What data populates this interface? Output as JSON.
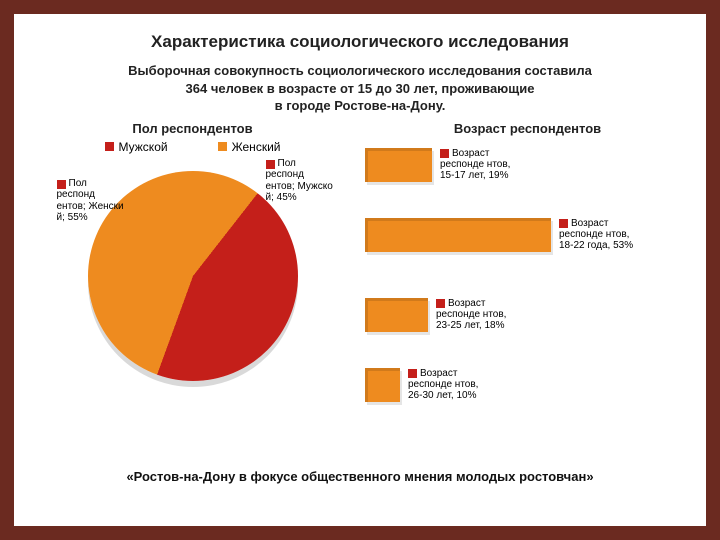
{
  "title": "Характеристика социологического исследования",
  "subtitle_l1": "Выборочная совокупность социологического исследования составила",
  "subtitle_l2": "364 человек в возрасте от 15 до 30 лет, проживающие",
  "subtitle_l3": "в городе Ростове-на-Дону.",
  "pie": {
    "title": "Пол респондентов",
    "legend_male": "Мужской",
    "legend_female": "Женский",
    "colors": {
      "male": "#c41f1a",
      "female": "#ee8b1f"
    },
    "male_pct": 45,
    "female_pct": 55,
    "label_female": "Пол респонд ентов; Женски й; 55%",
    "label_male": "Пол респонд ентов; Мужско й; 45%"
  },
  "bars": {
    "title": "Возраст респондентов",
    "color": "#ee8b1f",
    "marker": "#c41f1a",
    "max_pct": 60,
    "items": [
      {
        "label": "Возраст респонде нтов, 15-17 лет, 19%",
        "value": 19
      },
      {
        "label": "Возраст респонде нтов, 18-22 года, 53%",
        "value": 53
      },
      {
        "label": "Возраст респонде нтов, 23-25 лет, 18%",
        "value": 18
      },
      {
        "label": "Возраст респонде нтов, 26-30 лет, 10%",
        "value": 10
      }
    ]
  },
  "footer": "«Ростов-на-Дону в фокусе общественного мнения молодых ростовчан»"
}
